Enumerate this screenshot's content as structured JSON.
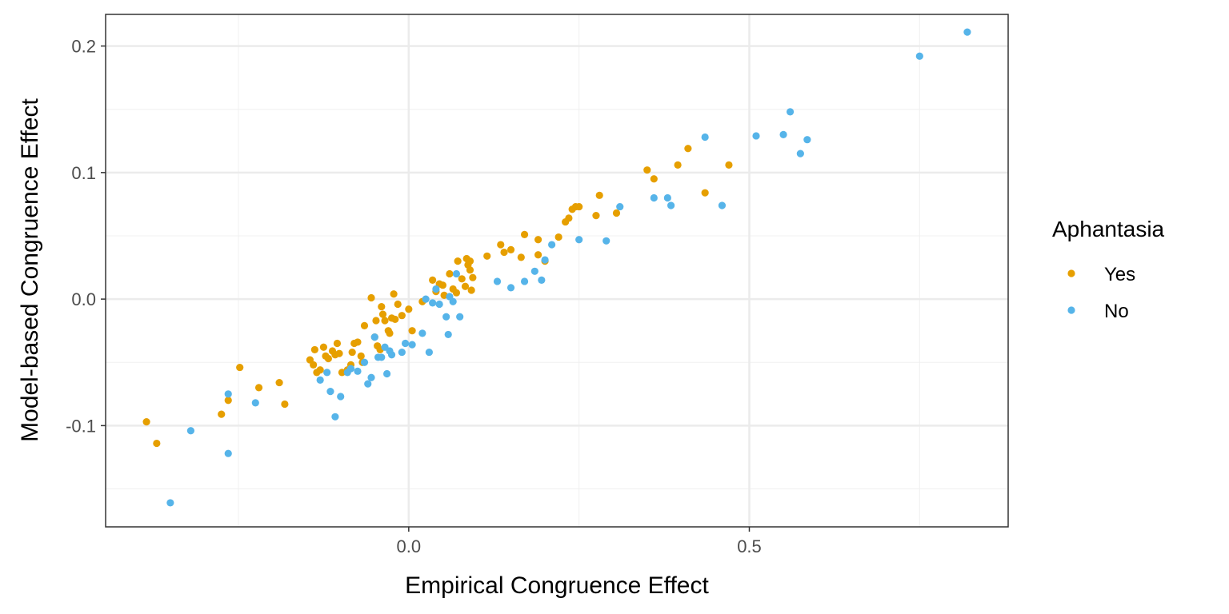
{
  "chart_data": {
    "type": "scatter",
    "xlabel": "Empirical Congruence Effect",
    "ylabel": "Model-based Congruence Effect",
    "xlim": [
      -0.445,
      0.88
    ],
    "ylim": [
      -0.18,
      0.225
    ],
    "x_ticks": [
      0.0,
      0.5
    ],
    "x_tick_labels": [
      "0.0",
      "0.5"
    ],
    "y_ticks": [
      -0.1,
      0.0,
      0.1,
      0.2
    ],
    "y_tick_labels": [
      "-0.1",
      "0.0",
      "0.1",
      "0.2"
    ],
    "grid": true,
    "legend": {
      "title": "Aphantasia",
      "position": "right"
    },
    "series": [
      {
        "name": "Yes",
        "color": "#E69F00",
        "points": [
          [
            -0.385,
            -0.097
          ],
          [
            -0.37,
            -0.114
          ],
          [
            -0.275,
            -0.091
          ],
          [
            -0.265,
            -0.08
          ],
          [
            -0.248,
            -0.054
          ],
          [
            -0.22,
            -0.07
          ],
          [
            -0.19,
            -0.066
          ],
          [
            -0.182,
            -0.083
          ],
          [
            -0.145,
            -0.048
          ],
          [
            -0.14,
            -0.052
          ],
          [
            -0.138,
            -0.04
          ],
          [
            -0.135,
            -0.058
          ],
          [
            -0.13,
            -0.056
          ],
          [
            -0.125,
            -0.038
          ],
          [
            -0.122,
            -0.045
          ],
          [
            -0.118,
            -0.047
          ],
          [
            -0.112,
            -0.041
          ],
          [
            -0.108,
            -0.044
          ],
          [
            -0.105,
            -0.035
          ],
          [
            -0.102,
            -0.043
          ],
          [
            -0.098,
            -0.058
          ],
          [
            -0.09,
            -0.056
          ],
          [
            -0.085,
            -0.052
          ],
          [
            -0.083,
            -0.042
          ],
          [
            -0.08,
            -0.035
          ],
          [
            -0.075,
            -0.034
          ],
          [
            -0.07,
            -0.045
          ],
          [
            -0.068,
            -0.05
          ],
          [
            -0.065,
            -0.021
          ],
          [
            -0.055,
            0.001
          ],
          [
            -0.05,
            -0.03
          ],
          [
            -0.048,
            -0.017
          ],
          [
            -0.046,
            -0.037
          ],
          [
            -0.042,
            -0.04
          ],
          [
            -0.04,
            -0.006
          ],
          [
            -0.038,
            -0.012
          ],
          [
            -0.035,
            -0.017
          ],
          [
            -0.03,
            -0.025
          ],
          [
            -0.028,
            -0.027
          ],
          [
            -0.025,
            -0.015
          ],
          [
            -0.022,
            0.004
          ],
          [
            -0.02,
            -0.016
          ],
          [
            -0.016,
            -0.004
          ],
          [
            -0.01,
            -0.013
          ],
          [
            0.0,
            -0.008
          ],
          [
            0.005,
            -0.025
          ],
          [
            0.02,
            -0.002
          ],
          [
            0.035,
            0.015
          ],
          [
            0.04,
            0.006
          ],
          [
            0.045,
            0.012
          ],
          [
            0.05,
            0.011
          ],
          [
            0.052,
            0.003
          ],
          [
            0.06,
            0.02
          ],
          [
            0.065,
            0.008
          ],
          [
            0.07,
            0.005
          ],
          [
            0.072,
            0.03
          ],
          [
            0.078,
            0.016
          ],
          [
            0.083,
            0.01
          ],
          [
            0.085,
            0.032
          ],
          [
            0.087,
            0.027
          ],
          [
            0.09,
            0.03
          ],
          [
            0.092,
            0.007
          ],
          [
            0.094,
            0.017
          ],
          [
            0.09,
            0.023
          ],
          [
            0.115,
            0.034
          ],
          [
            0.135,
            0.043
          ],
          [
            0.14,
            0.037
          ],
          [
            0.15,
            0.039
          ],
          [
            0.165,
            0.033
          ],
          [
            0.17,
            0.051
          ],
          [
            0.19,
            0.035
          ],
          [
            0.19,
            0.047
          ],
          [
            0.2,
            0.03
          ],
          [
            0.22,
            0.049
          ],
          [
            0.23,
            0.061
          ],
          [
            0.235,
            0.064
          ],
          [
            0.24,
            0.071
          ],
          [
            0.245,
            0.073
          ],
          [
            0.25,
            0.073
          ],
          [
            0.275,
            0.066
          ],
          [
            0.28,
            0.082
          ],
          [
            0.305,
            0.068
          ],
          [
            0.35,
            0.102
          ],
          [
            0.36,
            0.095
          ],
          [
            0.395,
            0.106
          ],
          [
            0.41,
            0.119
          ],
          [
            0.435,
            0.084
          ],
          [
            0.47,
            0.106
          ]
        ]
      },
      {
        "name": "No",
        "color": "#56B4E9",
        "points": [
          [
            -0.35,
            -0.161
          ],
          [
            -0.32,
            -0.104
          ],
          [
            -0.265,
            -0.075
          ],
          [
            -0.265,
            -0.122
          ],
          [
            -0.225,
            -0.082
          ],
          [
            -0.13,
            -0.064
          ],
          [
            -0.12,
            -0.058
          ],
          [
            -0.115,
            -0.073
          ],
          [
            -0.108,
            -0.093
          ],
          [
            -0.1,
            -0.077
          ],
          [
            -0.09,
            -0.058
          ],
          [
            -0.085,
            -0.055
          ],
          [
            -0.075,
            -0.057
          ],
          [
            -0.065,
            -0.05
          ],
          [
            -0.06,
            -0.067
          ],
          [
            -0.055,
            -0.062
          ],
          [
            -0.05,
            -0.03
          ],
          [
            -0.045,
            -0.046
          ],
          [
            -0.04,
            -0.046
          ],
          [
            -0.035,
            -0.038
          ],
          [
            -0.032,
            -0.059
          ],
          [
            -0.028,
            -0.041
          ],
          [
            -0.025,
            -0.044
          ],
          [
            -0.01,
            -0.042
          ],
          [
            -0.005,
            -0.035
          ],
          [
            0.005,
            -0.036
          ],
          [
            0.02,
            -0.027
          ],
          [
            0.025,
            0.0
          ],
          [
            0.03,
            -0.042
          ],
          [
            0.035,
            -0.003
          ],
          [
            0.04,
            0.008
          ],
          [
            0.045,
            -0.004
          ],
          [
            0.055,
            -0.014
          ],
          [
            0.058,
            -0.028
          ],
          [
            0.06,
            0.002
          ],
          [
            0.065,
            -0.002
          ],
          [
            0.07,
            0.02
          ],
          [
            0.075,
            -0.014
          ],
          [
            0.13,
            0.014
          ],
          [
            0.15,
            0.009
          ],
          [
            0.17,
            0.014
          ],
          [
            0.185,
            0.022
          ],
          [
            0.195,
            0.015
          ],
          [
            0.2,
            0.031
          ],
          [
            0.21,
            0.043
          ],
          [
            0.25,
            0.047
          ],
          [
            0.29,
            0.046
          ],
          [
            0.31,
            0.073
          ],
          [
            0.36,
            0.08
          ],
          [
            0.38,
            0.08
          ],
          [
            0.385,
            0.074
          ],
          [
            0.435,
            0.128
          ],
          [
            0.46,
            0.074
          ],
          [
            0.51,
            0.129
          ],
          [
            0.55,
            0.13
          ],
          [
            0.56,
            0.148
          ],
          [
            0.575,
            0.115
          ],
          [
            0.585,
            0.126
          ],
          [
            0.75,
            0.192
          ],
          [
            0.82,
            0.211
          ]
        ]
      }
    ]
  }
}
